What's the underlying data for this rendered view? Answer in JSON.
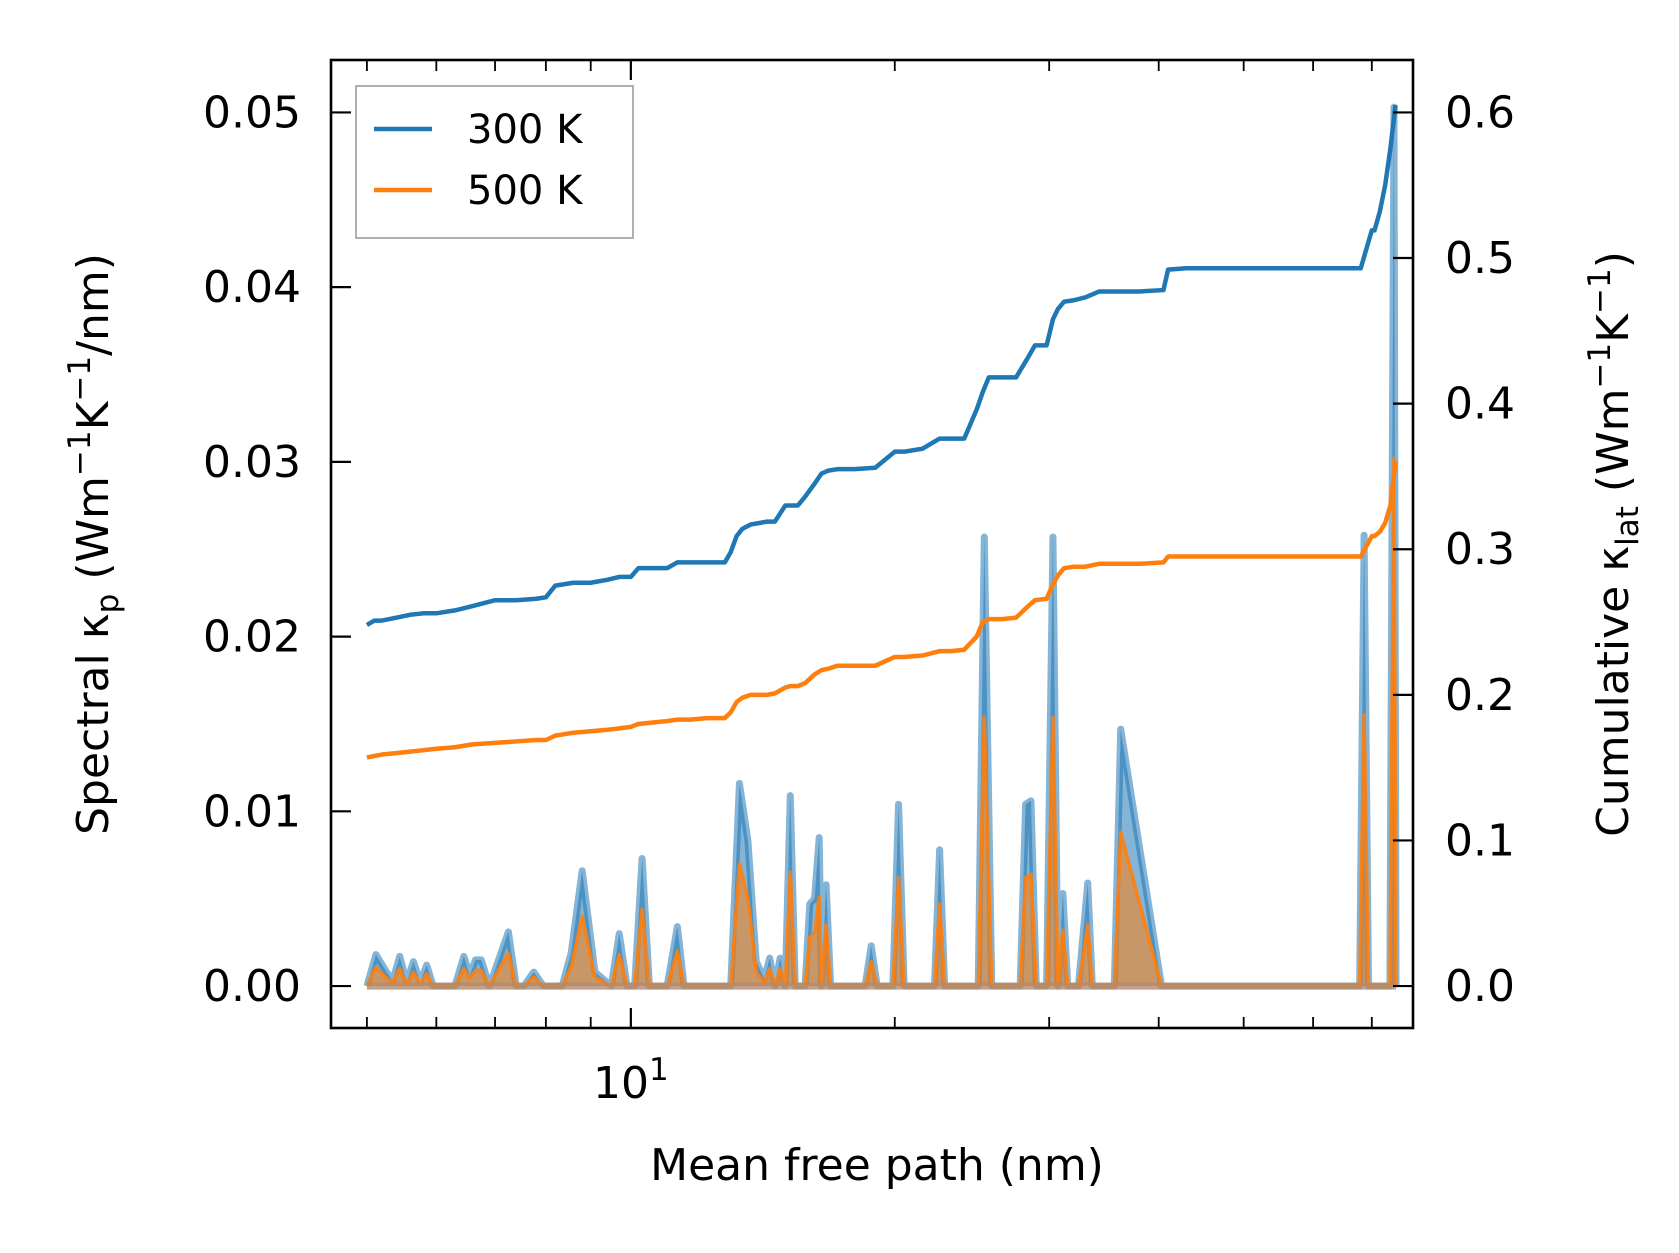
{
  "chart_data": {
    "type": "line",
    "title": "",
    "xlabel": "Mean free path (nm)",
    "ylabel_left": {
      "prefix": "Spectral κ",
      "sub": "p",
      "units_open": " (Wm",
      "sup1": "−1",
      "mid": "K",
      "sup2": "−1",
      "units_close": "/nm)"
    },
    "ylabel_right": {
      "prefix": "Cumulative κ",
      "sub": "lat",
      "units_open": " (Wm",
      "sup1": "−1",
      "mid": "K",
      "sup2": "−1",
      "units_close": ")"
    },
    "xscale": "log",
    "xlim": [
      4.55,
      78.0
    ],
    "ylim_left": [
      -0.0024,
      0.053
    ],
    "ylim_right": [
      -0.0288,
      0.636
    ],
    "xticks_major": [
      {
        "value": 10,
        "base": "10",
        "exp": "1"
      }
    ],
    "xticks_minor": [
      5,
      6,
      7,
      8,
      9,
      20,
      30,
      40,
      50,
      60,
      70
    ],
    "yticks_left": [
      "0.00",
      "0.01",
      "0.02",
      "0.03",
      "0.04",
      "0.05"
    ],
    "yticks_right": [
      "0.0",
      "0.1",
      "0.2",
      "0.3",
      "0.4",
      "0.5",
      "0.6"
    ],
    "legend": {
      "position": "upper-left",
      "entries": [
        {
          "label": "300 K",
          "color": "#1f77b4"
        },
        {
          "label": "500 K",
          "color": "#ff7f0e"
        }
      ]
    },
    "colors": {
      "c300": "#1f77b4",
      "c500": "#ff7f0e",
      "fill300": "#1f77b4",
      "fill500": "#ff7f0e"
    },
    "cumulative_300K": {
      "x": [
        5.0,
        5.1,
        5.2,
        5.4,
        5.6,
        5.8,
        6.0,
        6.3,
        6.6,
        7.0,
        7.4,
        7.8,
        8.0,
        8.2,
        8.6,
        9.0,
        9.4,
        9.7,
        10.0,
        10.2,
        10.6,
        11.0,
        11.3,
        11.7,
        12.2,
        12.8,
        13.0,
        13.2,
        13.4,
        13.7,
        14.0,
        14.3,
        14.6,
        15.0,
        15.2,
        15.5,
        15.8,
        16.2,
        16.5,
        16.8,
        17.2,
        18.0,
        19.0,
        20.0,
        20.5,
        21.5,
        22.5,
        23.2,
        24.0,
        24.8,
        25.2,
        25.6,
        26.5,
        27.5,
        28.4,
        28.9,
        29.8,
        30.3,
        30.7,
        31.2,
        32.0,
        33.0,
        34.2,
        35.5,
        38.0,
        40.5,
        41.0,
        43.0,
        50.0,
        60.0,
        68.0,
        70.0,
        70.5,
        71.5,
        72.5,
        73.5,
        74.5
      ],
      "y": [
        0.248,
        0.251,
        0.251,
        0.253,
        0.255,
        0.256,
        0.256,
        0.258,
        0.261,
        0.265,
        0.265,
        0.266,
        0.267,
        0.275,
        0.277,
        0.277,
        0.279,
        0.281,
        0.281,
        0.287,
        0.287,
        0.287,
        0.291,
        0.291,
        0.291,
        0.291,
        0.298,
        0.309,
        0.314,
        0.317,
        0.318,
        0.319,
        0.319,
        0.33,
        0.33,
        0.33,
        0.336,
        0.345,
        0.352,
        0.354,
        0.355,
        0.355,
        0.356,
        0.367,
        0.367,
        0.369,
        0.376,
        0.376,
        0.376,
        0.396,
        0.408,
        0.418,
        0.418,
        0.418,
        0.432,
        0.44,
        0.44,
        0.458,
        0.465,
        0.47,
        0.471,
        0.473,
        0.477,
        0.477,
        0.477,
        0.478,
        0.492,
        0.493,
        0.493,
        0.493,
        0.493,
        0.519,
        0.519,
        0.532,
        0.55,
        0.575,
        0.605
      ]
    },
    "cumulative_500K": {
      "x": [
        5.0,
        5.1,
        5.2,
        5.4,
        5.6,
        5.8,
        6.0,
        6.3,
        6.6,
        7.0,
        7.4,
        7.8,
        8.0,
        8.2,
        8.6,
        9.0,
        9.4,
        9.7,
        10.0,
        10.2,
        10.6,
        11.0,
        11.3,
        11.7,
        12.2,
        12.8,
        13.0,
        13.2,
        13.4,
        13.7,
        14.0,
        14.3,
        14.6,
        15.0,
        15.2,
        15.5,
        15.8,
        16.2,
        16.5,
        16.8,
        17.2,
        18.0,
        19.0,
        20.0,
        20.5,
        21.5,
        22.5,
        23.2,
        24.0,
        24.8,
        25.2,
        25.6,
        26.5,
        27.5,
        28.4,
        28.9,
        29.8,
        30.3,
        30.7,
        31.2,
        32.0,
        33.0,
        34.2,
        35.5,
        38.0,
        40.5,
        41.0,
        43.0,
        50.0,
        60.0,
        68.0,
        70.0,
        70.5,
        71.5,
        72.5,
        73.5,
        74.5
      ],
      "y": [
        0.157,
        0.158,
        0.159,
        0.16,
        0.161,
        0.162,
        0.163,
        0.164,
        0.166,
        0.167,
        0.168,
        0.169,
        0.169,
        0.172,
        0.174,
        0.175,
        0.176,
        0.177,
        0.178,
        0.18,
        0.181,
        0.182,
        0.183,
        0.183,
        0.184,
        0.184,
        0.188,
        0.195,
        0.198,
        0.2,
        0.2,
        0.2,
        0.201,
        0.205,
        0.206,
        0.206,
        0.208,
        0.214,
        0.217,
        0.218,
        0.22,
        0.22,
        0.22,
        0.226,
        0.226,
        0.227,
        0.23,
        0.23,
        0.231,
        0.24,
        0.25,
        0.252,
        0.252,
        0.253,
        0.261,
        0.265,
        0.266,
        0.276,
        0.282,
        0.287,
        0.288,
        0.288,
        0.29,
        0.29,
        0.29,
        0.291,
        0.295,
        0.295,
        0.295,
        0.295,
        0.295,
        0.309,
        0.309,
        0.312,
        0.318,
        0.33,
        0.36
      ]
    },
    "spectral_300K": {
      "x": [
        5.0,
        5.12,
        5.25,
        5.35,
        5.45,
        5.55,
        5.65,
        5.75,
        5.85,
        5.95,
        6.05,
        6.3,
        6.45,
        6.55,
        6.65,
        6.75,
        6.9,
        7.1,
        7.25,
        7.4,
        7.55,
        7.75,
        7.95,
        8.15,
        8.35,
        8.55,
        8.8,
        9.1,
        9.5,
        9.7,
        9.9,
        10.1,
        10.3,
        10.5,
        11.0,
        11.3,
        11.5,
        11.7,
        12.5,
        13.0,
        13.3,
        13.6,
        13.9,
        14.2,
        14.4,
        14.6,
        14.8,
        15.0,
        15.2,
        15.4,
        15.6,
        15.8,
        16.0,
        16.2,
        16.4,
        16.5,
        16.7,
        16.9,
        17.1,
        17.3,
        17.5,
        18.5,
        18.8,
        19.1,
        19.9,
        20.2,
        20.5,
        22.2,
        22.5,
        22.8,
        24.5,
        24.9,
        25.3,
        25.8,
        26.2,
        27.0,
        27.8,
        28.2,
        28.6,
        29.0,
        29.4,
        29.8,
        30.3,
        30.7,
        31.1,
        31.5,
        32.0,
        32.4,
        33.2,
        33.6,
        34.0,
        34.4,
        35.0,
        35.6,
        36.2,
        40.3,
        40.9,
        41.5,
        45.0,
        50.0,
        60.0,
        67.8,
        68.6,
        69.4,
        70.2,
        71.0,
        71.8,
        72.6,
        73.4,
        74.2,
        74.6
      ],
      "y": [
        0.0,
        0.0018,
        0.0009,
        0.0003,
        0.0017,
        0.0002,
        0.0014,
        0.0002,
        0.0012,
        0.0,
        0.0,
        0.0,
        0.0017,
        0.0006,
        0.0015,
        0.0015,
        0.0,
        0.0018,
        0.0031,
        0.0,
        0.0,
        0.0008,
        0.0,
        0.0,
        0.0,
        0.0019,
        0.0066,
        0.0008,
        0.0,
        0.003,
        0.0,
        0.0,
        0.0073,
        0.0,
        0.0,
        0.0034,
        0.0,
        0.0,
        0.0,
        0.0,
        0.0116,
        0.0083,
        0.0014,
        0.0004,
        0.0016,
        0.0,
        0.0016,
        0.0,
        0.0109,
        0.0,
        0.0,
        0.0,
        0.0047,
        0.005,
        0.0085,
        0.0,
        0.0058,
        0.0,
        0.0,
        0.0,
        0.0,
        0.0,
        0.0023,
        0.0,
        0.0,
        0.0104,
        0.0,
        0.0,
        0.0078,
        0.0,
        0.0,
        0.0,
        0.0257,
        0.0,
        0.0,
        0.0,
        0.0,
        0.0104,
        0.0106,
        0.0,
        0.0,
        0.0,
        0.0257,
        0.0,
        0.0053,
        0.0,
        0.0,
        0.0,
        0.0059,
        0.0,
        0.0,
        0.0,
        0.0,
        0.0,
        0.0147,
        0.0,
        0.0,
        0.0,
        0.0,
        0.0,
        0.0,
        0.0,
        0.0258,
        0.0,
        0.0,
        0.0,
        0.0,
        0.0,
        0.0,
        0.0503,
        0.0
      ],
      "width_note": ""
    },
    "spectral_500K": {
      "x": [
        5.0,
        5.12,
        5.25,
        5.35,
        5.45,
        5.55,
        5.65,
        5.75,
        5.85,
        5.95,
        6.05,
        6.3,
        6.45,
        6.55,
        6.65,
        6.75,
        6.9,
        7.1,
        7.25,
        7.4,
        7.55,
        7.75,
        7.95,
        8.15,
        8.35,
        8.55,
        8.8,
        9.1,
        9.5,
        9.7,
        9.9,
        10.1,
        10.3,
        10.5,
        11.0,
        11.3,
        11.5,
        11.7,
        12.5,
        13.0,
        13.3,
        13.6,
        13.9,
        14.2,
        14.4,
        14.6,
        14.8,
        15.0,
        15.2,
        15.4,
        15.6,
        15.8,
        16.0,
        16.2,
        16.4,
        16.5,
        16.7,
        16.9,
        17.1,
        17.3,
        17.5,
        18.5,
        18.8,
        19.1,
        19.9,
        20.2,
        20.5,
        22.2,
        22.5,
        22.8,
        24.5,
        24.9,
        25.3,
        25.8,
        26.2,
        27.0,
        27.8,
        28.2,
        28.6,
        29.0,
        29.4,
        29.8,
        30.3,
        30.7,
        31.1,
        31.5,
        32.0,
        32.4,
        33.2,
        33.6,
        34.0,
        34.4,
        35.0,
        35.6,
        36.2,
        40.3,
        40.9,
        41.5,
        45.0,
        50.0,
        60.0,
        67.8,
        68.6,
        69.4,
        70.2,
        71.0,
        71.8,
        72.6,
        73.4,
        74.2,
        74.6
      ],
      "y": [
        0.0,
        0.0011,
        0.0005,
        0.0002,
        0.001,
        0.0001,
        0.0008,
        0.0001,
        0.0007,
        0.0,
        0.0,
        0.0,
        0.001,
        0.0004,
        0.0009,
        0.0009,
        0.0,
        0.0011,
        0.0019,
        0.0,
        0.0,
        0.0005,
        0.0,
        0.0,
        0.0,
        0.0011,
        0.004,
        0.0005,
        0.0,
        0.0018,
        0.0,
        0.0,
        0.0044,
        0.0,
        0.0,
        0.002,
        0.0,
        0.0,
        0.0,
        0.0,
        0.007,
        0.005,
        0.0008,
        0.0002,
        0.001,
        0.0,
        0.001,
        0.0,
        0.0065,
        0.0,
        0.0,
        0.0,
        0.0028,
        0.003,
        0.0051,
        0.0,
        0.0035,
        0.0,
        0.0,
        0.0,
        0.0,
        0.0,
        0.0014,
        0.0,
        0.0,
        0.0062,
        0.0,
        0.0,
        0.0047,
        0.0,
        0.0,
        0.0,
        0.0154,
        0.0,
        0.0,
        0.0,
        0.0,
        0.0062,
        0.0064,
        0.0,
        0.0,
        0.0,
        0.0154,
        0.0,
        0.0032,
        0.0,
        0.0,
        0.0,
        0.0035,
        0.0,
        0.0,
        0.0,
        0.0,
        0.0,
        0.0088,
        0.0,
        0.0,
        0.0,
        0.0,
        0.0,
        0.0,
        0.0,
        0.0155,
        0.0,
        0.0,
        0.0,
        0.0,
        0.0,
        0.0,
        0.0302,
        0.0
      ],
      "width_note": ""
    }
  }
}
